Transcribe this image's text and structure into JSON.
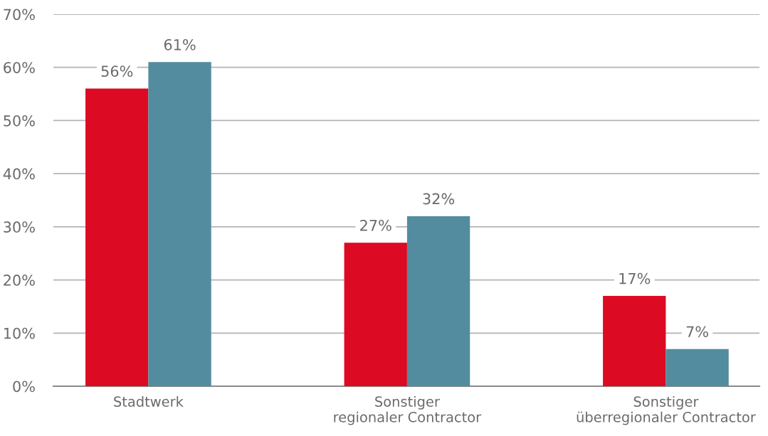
{
  "chart_data": {
    "type": "bar",
    "categories": [
      "Stadtwerk",
      "Sonstiger\nregionaler Contractor",
      "Sonstiger\nüberregionaler Contractor"
    ],
    "series": [
      {
        "color": "#dc0a23",
        "values": [
          56,
          27,
          17
        ],
        "value_labels": [
          "56%",
          "27%",
          "17%"
        ]
      },
      {
        "color": "#538c9e",
        "values": [
          61,
          32,
          7
        ],
        "value_labels": [
          "61%",
          "32%",
          "7%"
        ]
      }
    ],
    "ylim": [
      0,
      70
    ],
    "yticks": [
      {
        "value": 0,
        "label": "0%"
      },
      {
        "value": 10,
        "label": "10%"
      },
      {
        "value": 20,
        "label": "20%"
      },
      {
        "value": 30,
        "label": "30%"
      },
      {
        "value": 40,
        "label": "40%"
      },
      {
        "value": 50,
        "label": "50%"
      },
      {
        "value": 60,
        "label": "60%"
      },
      {
        "value": 70,
        "label": "70%"
      }
    ],
    "grid": "y",
    "legend": false
  }
}
